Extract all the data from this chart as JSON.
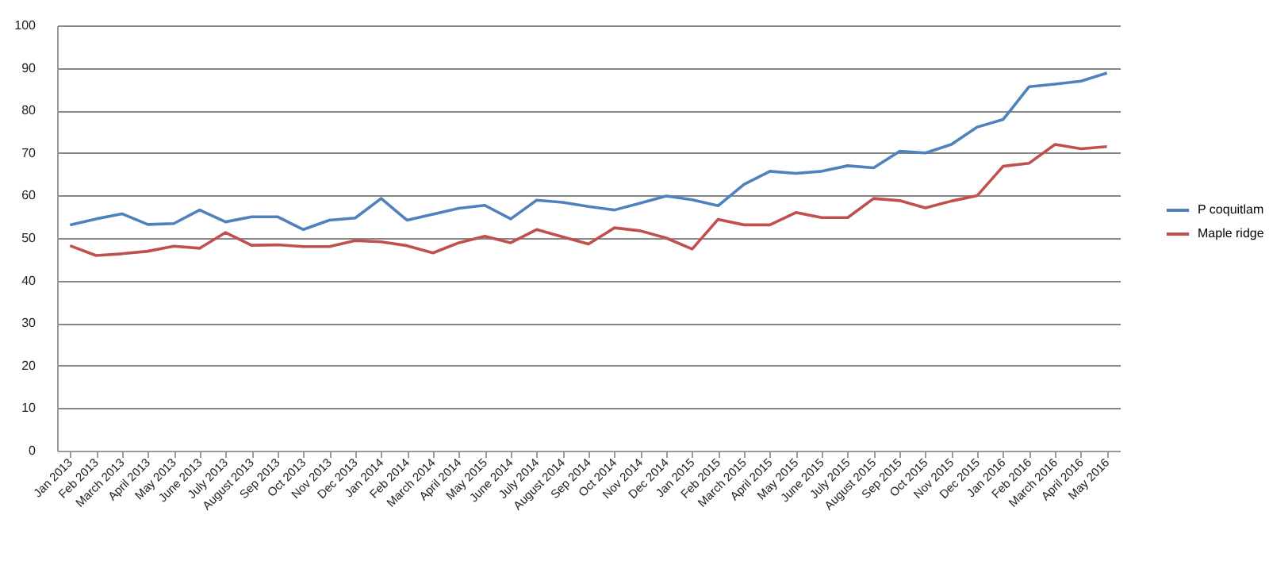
{
  "chart_data": {
    "type": "line",
    "categories": [
      "Jan 2013",
      "Feb 2013",
      "March 2013",
      "April 2013",
      "May 2013",
      "June 2013",
      "July 2013",
      "August 2013",
      "Sep 2013",
      "Oct 2013",
      "Nov 2013",
      "Dec 2013",
      "Jan 2014",
      "Feb 2014",
      "March 2014",
      "April 2014",
      "May 2015",
      "June 2014",
      "July 2014",
      "August 2014",
      "Sep 2014",
      "Oct 2014",
      "Nov 2014",
      "Dec 2014",
      "Jan 2015",
      "Feb 2015",
      "March 2015",
      "April 2015",
      "May 2015",
      "June 2015",
      "July 2015",
      "August 2015",
      "Sep 2015",
      "Oct 2015",
      "Nov 2015",
      "Dec 2015",
      "Jan 2016",
      "Feb 2016",
      "March 2016",
      "April 2016",
      "May 2016"
    ],
    "series": [
      {
        "name": "P coquitlam",
        "color": "#4f81bd",
        "values": [
          53.1,
          54.5,
          55.7,
          53.2,
          53.4,
          56.6,
          53.8,
          55,
          55,
          52,
          54.2,
          54.7,
          59.3,
          54.2,
          55.6,
          57,
          57.7,
          54.5,
          58.9,
          58.4,
          57.4,
          56.6,
          58.2,
          59.9,
          59,
          57.6,
          62.6,
          65.7,
          65.2,
          65.7,
          67,
          66.5,
          70.4,
          70,
          72,
          76.1,
          77.9,
          85.6,
          86.2,
          86.9,
          88.8
        ]
      },
      {
        "name": "Maple ridge",
        "color": "#c0504d",
        "values": [
          48.2,
          45.9,
          46.3,
          46.9,
          48.1,
          47.6,
          51.3,
          48.3,
          48.4,
          48,
          48,
          49.4,
          49.1,
          48.2,
          46.5,
          48.9,
          50.4,
          48.9,
          52,
          50.3,
          48.6,
          52.4,
          51.7,
          50,
          47.4,
          54.4,
          53.1,
          53.1,
          56,
          54.8,
          54.8,
          59.3,
          58.8,
          57.1,
          58.7,
          60,
          66.9,
          67.6,
          72,
          71,
          71.5
        ]
      }
    ],
    "ylim": [
      0,
      100
    ],
    "yticks": [
      0,
      10,
      20,
      30,
      40,
      50,
      60,
      70,
      80,
      90,
      100
    ],
    "grid": "y",
    "legend": "right",
    "marker": "none",
    "line_style": "solid"
  }
}
